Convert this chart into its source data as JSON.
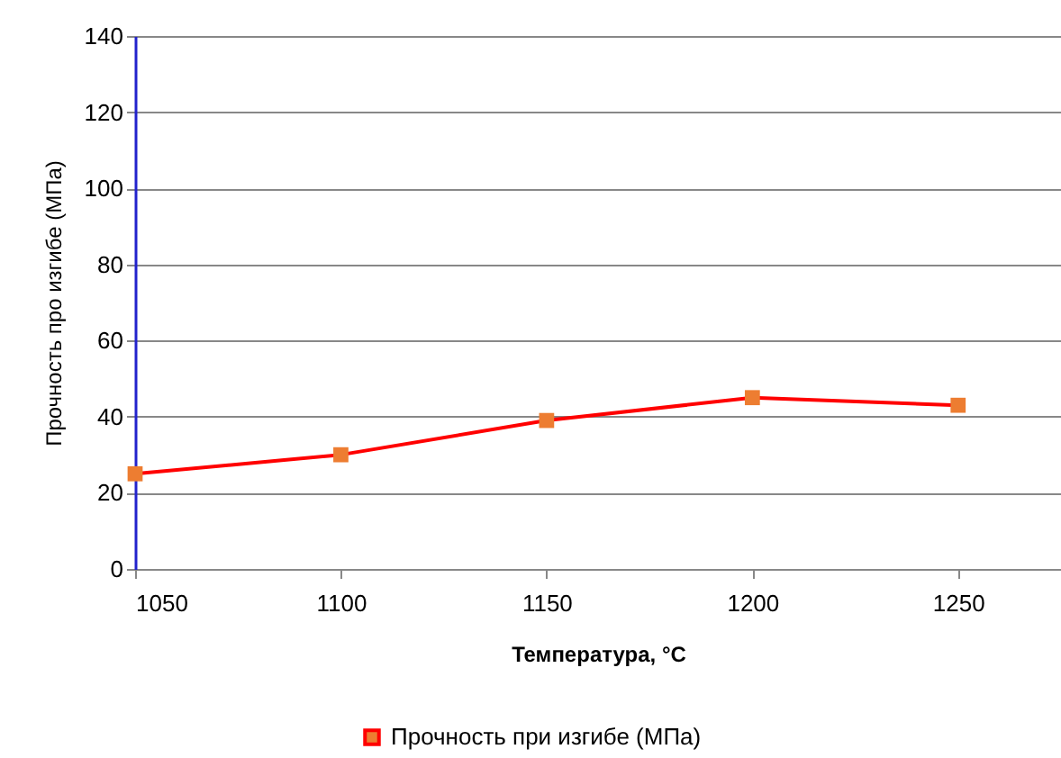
{
  "chart_data": {
    "type": "line",
    "xlabel": "Температура, °C",
    "ylabel": "Прочность про изгибе (МПа)",
    "x": [
      1050,
      1100,
      1150,
      1200,
      1250
    ],
    "series": [
      {
        "name": "Прочность при изгибе (МПа)",
        "color": "#ff0000",
        "colors": [
          "#ed7d31",
          "#ed7d31",
          "#ed7d31",
          "#ed7d31",
          "#ed7d31"
        ],
        "values": [
          25,
          30,
          39,
          45,
          43
        ]
      }
    ],
    "xlim": [
      1050,
      1275
    ],
    "xticks": [
      1050,
      1100,
      1150,
      1200,
      1250
    ],
    "ylim": [
      0,
      140
    ],
    "yticks": [
      0,
      20,
      40,
      60,
      80,
      100,
      120,
      140
    ],
    "grid": "y",
    "legend": "bottom",
    "marker": "square",
    "line_style": "solid"
  }
}
